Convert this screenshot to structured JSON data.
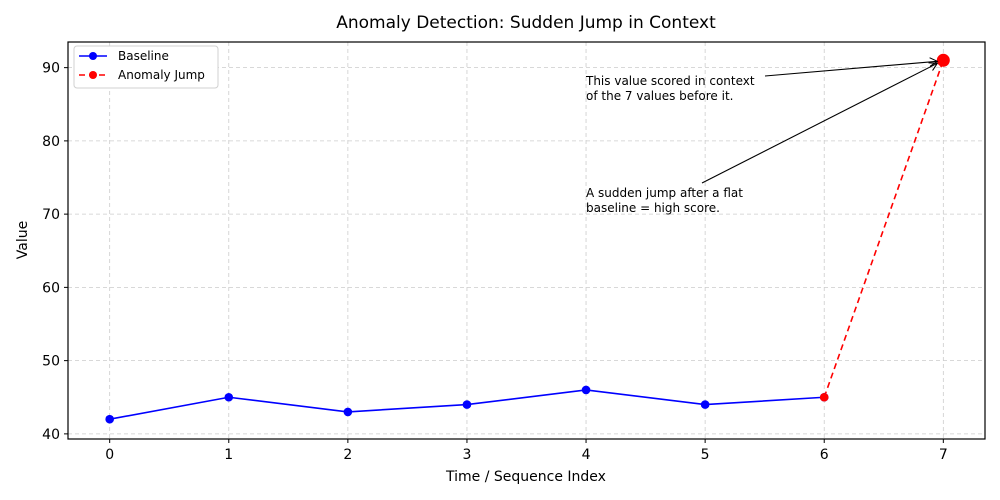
{
  "chart_data": {
    "type": "line",
    "title": "Anomaly Detection: Sudden Jump in Context",
    "xlabel": "Time / Sequence Index",
    "ylabel": "Value",
    "x": [
      0,
      1,
      2,
      3,
      4,
      5,
      6,
      7
    ],
    "xticks": [
      "0",
      "1",
      "2",
      "3",
      "4",
      "5",
      "6",
      "7"
    ],
    "yticks": [
      "40",
      "50",
      "60",
      "70",
      "80",
      "90"
    ],
    "xlim": [
      -0.35,
      7.35
    ],
    "ylim": [
      39.3,
      93.5
    ],
    "grid": true,
    "legend_position": "upper left",
    "series": [
      {
        "name": "Baseline",
        "x": [
          0,
          1,
          2,
          3,
          4,
          5,
          6
        ],
        "values": [
          42,
          45,
          43,
          44,
          46,
          44,
          45
        ],
        "color": "#0000ff",
        "style": "solid",
        "marker": "circle"
      },
      {
        "name": "Anomaly Jump",
        "x": [
          6,
          7
        ],
        "values": [
          45,
          91
        ],
        "color": "#ff0000",
        "style": "dashed",
        "marker": "circle"
      }
    ],
    "annotations": [
      {
        "text_lines": [
          "This value scored in context",
          "of the 7 values before it."
        ],
        "xy": [
          7,
          91
        ],
        "text_pos": [
          4,
          87
        ]
      },
      {
        "text_lines": [
          "A sudden jump after a flat",
          "baseline = high score."
        ],
        "xy": [
          7,
          91
        ],
        "text_pos": [
          4,
          72
        ]
      }
    ]
  }
}
